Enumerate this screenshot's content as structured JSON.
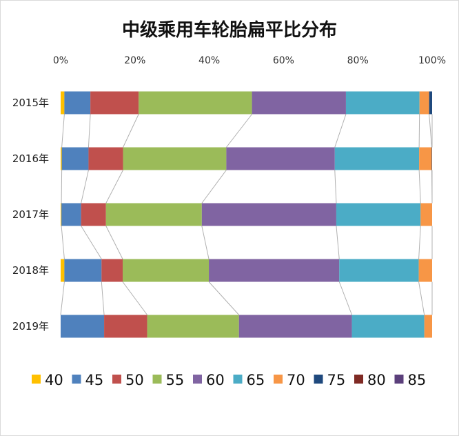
{
  "chart_data": {
    "type": "bar",
    "orientation": "horizontal",
    "stacked": "percent",
    "title": "中级乘用车轮胎扁平比分布",
    "categories": [
      "2015年",
      "2016年",
      "2017年",
      "2018年",
      "2019年"
    ],
    "x_ticks": [
      "0%",
      "20%",
      "40%",
      "60%",
      "80%",
      "100%"
    ],
    "xlim": [
      0,
      100
    ],
    "legend_position": "bottom",
    "series_lines": true,
    "series": [
      {
        "name": "40",
        "color": "#FFC000",
        "values": [
          1.0,
          0.3,
          0.2,
          1.0,
          0.0
        ]
      },
      {
        "name": "45",
        "color": "#4F81BD",
        "values": [
          7.0,
          7.2,
          5.3,
          10.0,
          11.7
        ]
      },
      {
        "name": "50",
        "color": "#C0504D",
        "values": [
          13.0,
          9.3,
          6.7,
          5.7,
          11.6
        ]
      },
      {
        "name": "55",
        "color": "#9BBB59",
        "values": [
          30.5,
          27.8,
          25.8,
          23.2,
          24.7
        ]
      },
      {
        "name": "60",
        "color": "#8064A2",
        "values": [
          25.3,
          29.2,
          36.2,
          35.1,
          30.4
        ]
      },
      {
        "name": "65",
        "color": "#4BACC6",
        "values": [
          19.8,
          22.7,
          22.7,
          21.4,
          19.5
        ]
      },
      {
        "name": "70",
        "color": "#F79646",
        "values": [
          2.6,
          3.4,
          3.1,
          3.6,
          2.1
        ]
      },
      {
        "name": "75",
        "color": "#1F497D",
        "values": [
          0.8,
          0.1,
          0.0,
          0.0,
          0.0
        ]
      },
      {
        "name": "80",
        "color": "#7F2A24",
        "values": [
          0.0,
          0.0,
          0.0,
          0.0,
          0.0
        ]
      },
      {
        "name": "85",
        "color": "#5B3F7B",
        "values": [
          0.0,
          0.0,
          0.0,
          0.0,
          0.0
        ]
      }
    ]
  }
}
